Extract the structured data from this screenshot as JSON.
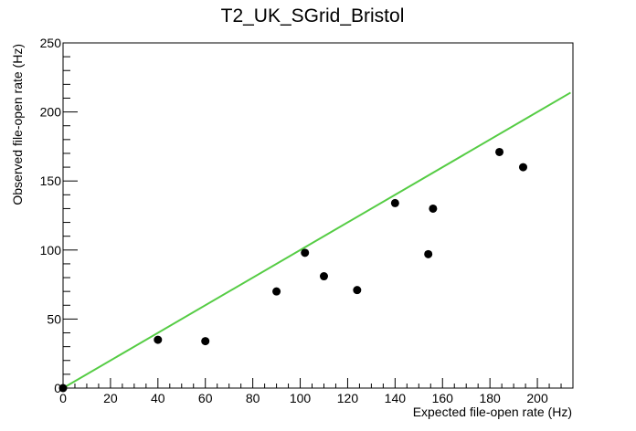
{
  "chart_data": {
    "type": "scatter",
    "title": "T2_UK_SGrid_Bristol",
    "xlabel": "Expected file-open rate (Hz)",
    "ylabel": "Observed file-open rate (Hz)",
    "xlim": [
      0,
      215
    ],
    "ylim": [
      0,
      250
    ],
    "xticks": [
      0,
      20,
      40,
      60,
      80,
      100,
      120,
      140,
      160,
      180,
      200
    ],
    "yticks": [
      0,
      50,
      100,
      150,
      200,
      250
    ],
    "grid": false,
    "legend": "none",
    "points_color": "#000000",
    "fit_line_color": "#55cc44",
    "points": [
      {
        "x": 0,
        "y": 0
      },
      {
        "x": 40,
        "y": 35
      },
      {
        "x": 60,
        "y": 34
      },
      {
        "x": 90,
        "y": 70
      },
      {
        "x": 102,
        "y": 98
      },
      {
        "x": 110,
        "y": 81
      },
      {
        "x": 124,
        "y": 71
      },
      {
        "x": 140,
        "y": 134
      },
      {
        "x": 154,
        "y": 97
      },
      {
        "x": 156,
        "y": 130
      },
      {
        "x": 184,
        "y": 171
      },
      {
        "x": 194,
        "y": 160
      }
    ],
    "fit_line": [
      {
        "x": 0,
        "y": 0
      },
      {
        "x": 214,
        "y": 214
      }
    ]
  }
}
